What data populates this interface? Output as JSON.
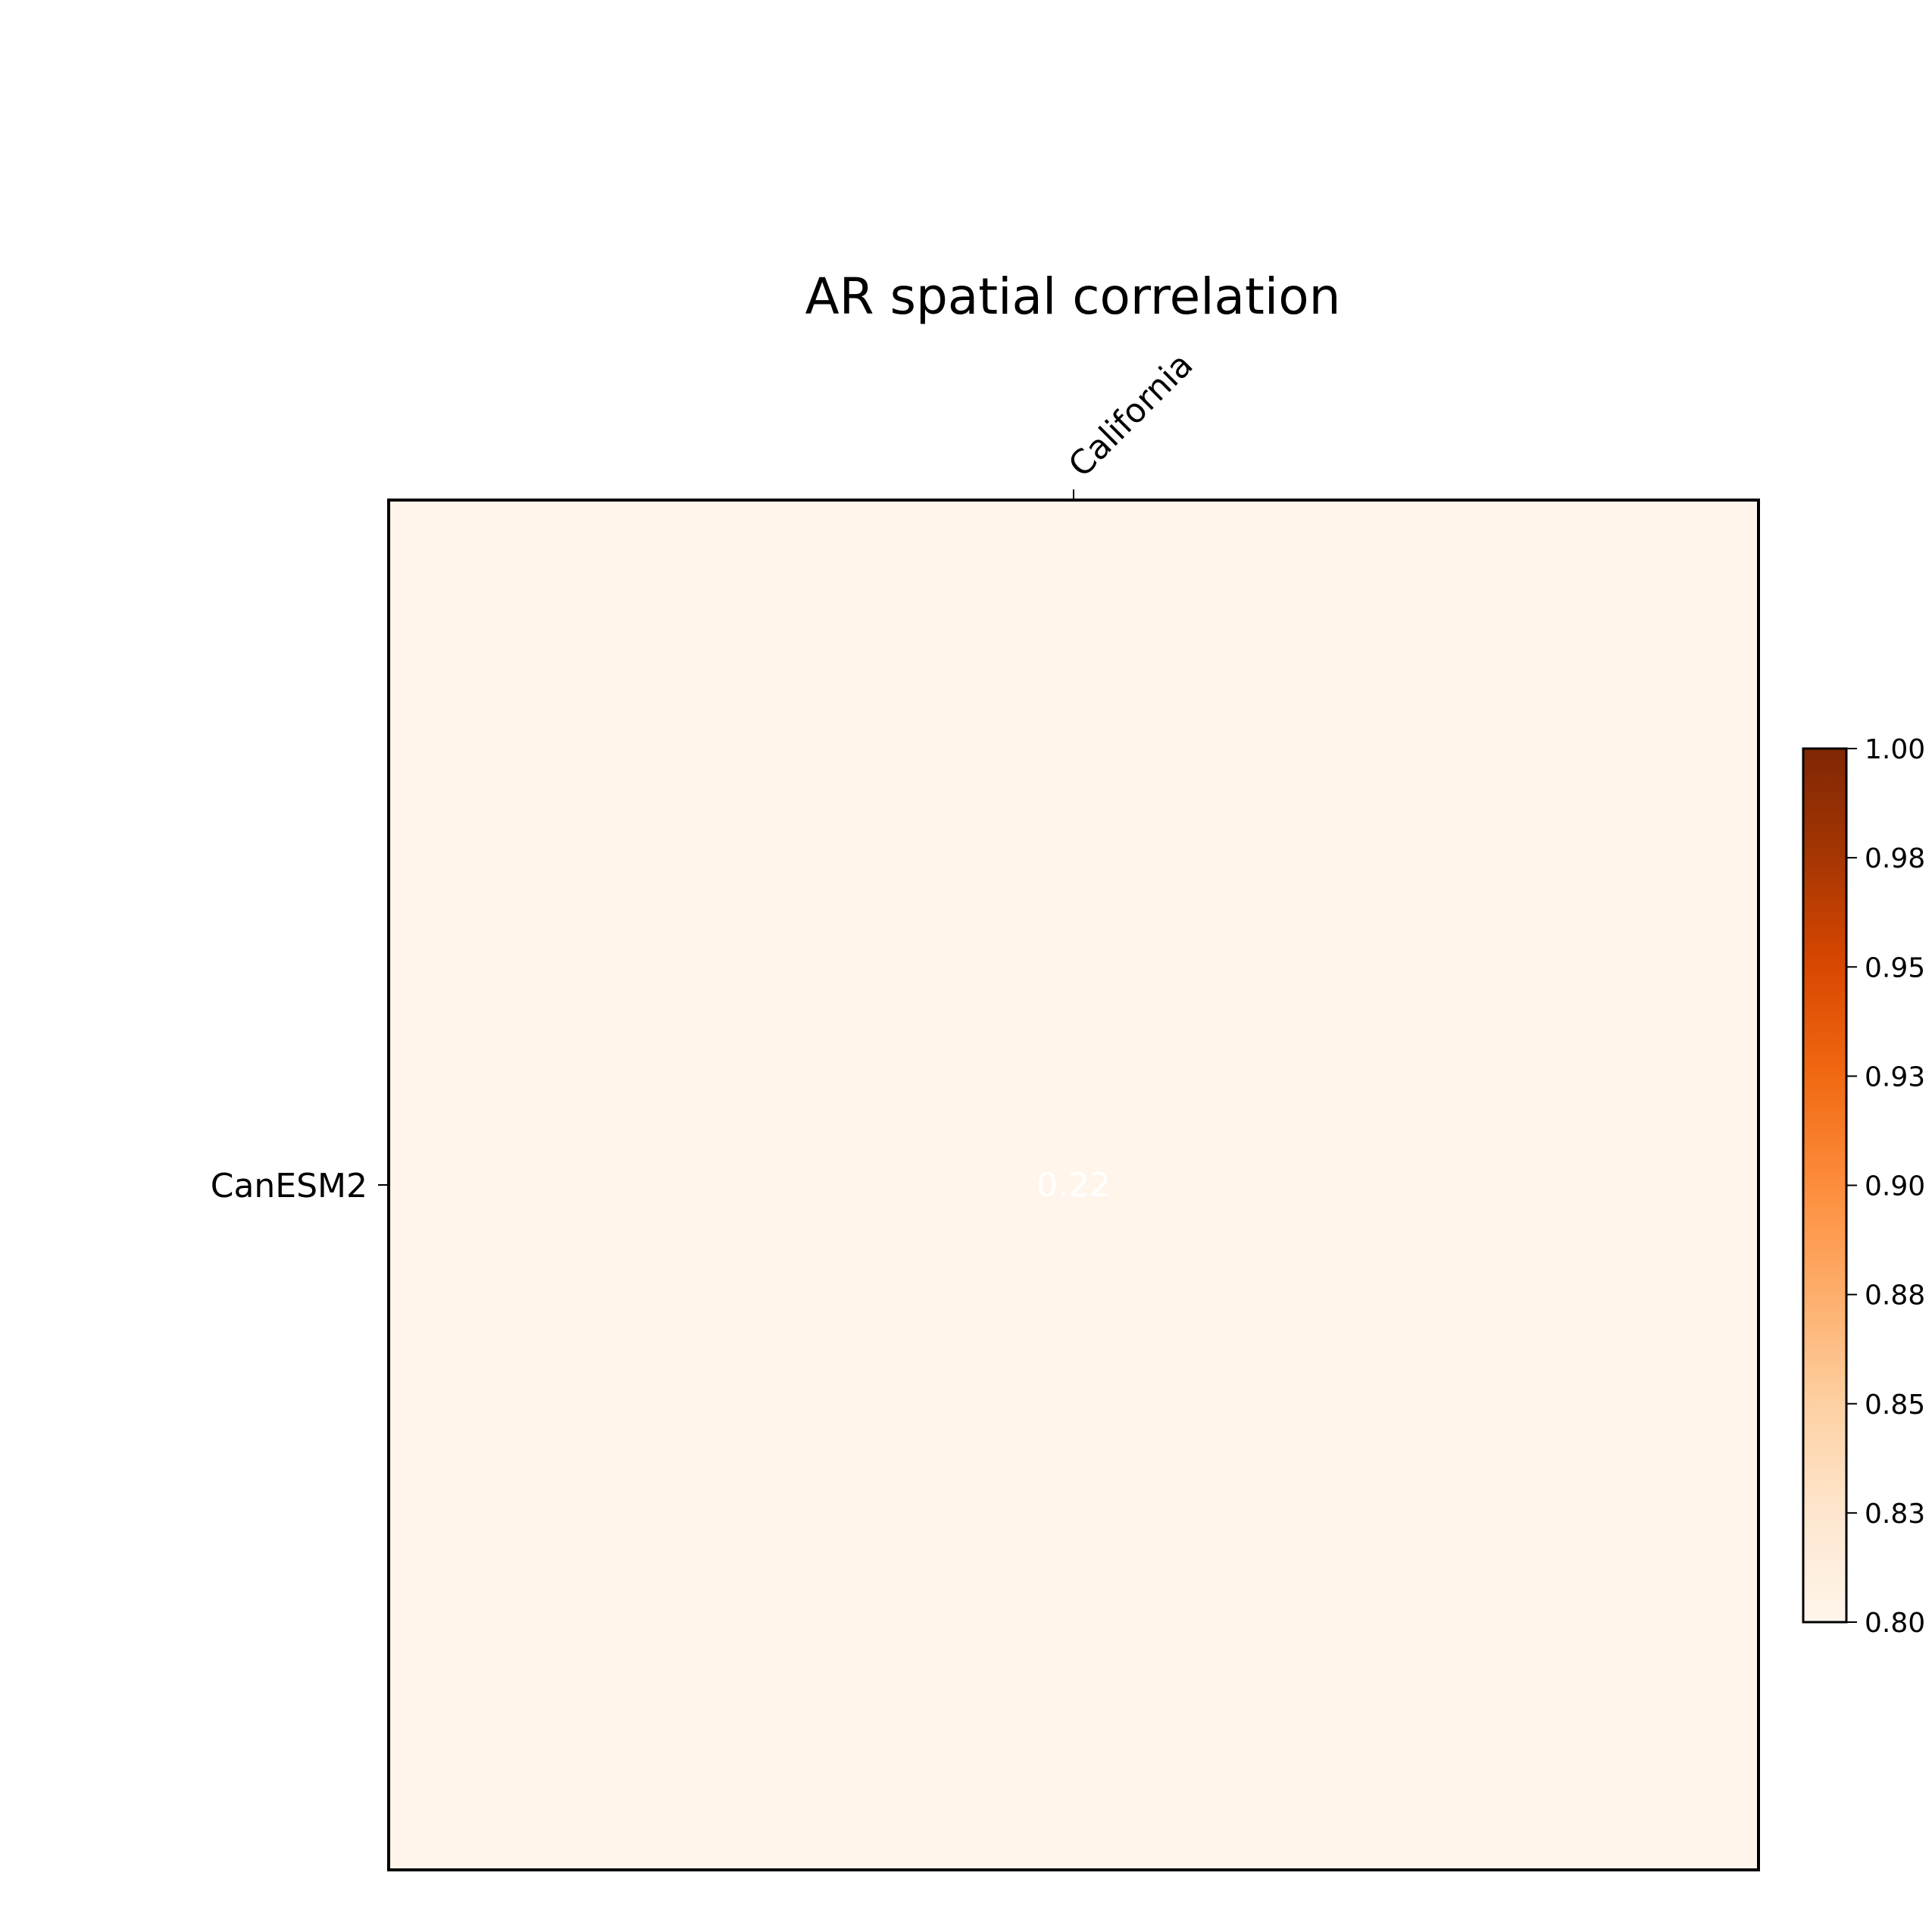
{
  "chart_data": {
    "type": "heatmap",
    "title": "AR spatial correlation",
    "xlabel": "",
    "ylabel": "",
    "x_categories": [
      "California"
    ],
    "y_categories": [
      "CanESM2"
    ],
    "values": [
      [
        0.22
      ]
    ],
    "value_labels": [
      [
        "0.22"
      ]
    ],
    "colormap": "Oranges",
    "colorbar": {
      "vmin": 0.8,
      "vmax": 1.0,
      "ticks": [
        0.8,
        0.825,
        0.85,
        0.875,
        0.9,
        0.925,
        0.95,
        0.975,
        1.0
      ],
      "tick_labels": [
        "0.80",
        "0.83",
        "0.85",
        "0.88",
        "0.90",
        "0.93",
        "0.95",
        "0.98",
        "1.00"
      ],
      "position": "right"
    },
    "colors": {
      "cell_fill": "#fff5eb",
      "cell_text": "#ffffff",
      "frame": "#000000",
      "cmap_stops": [
        "#fff5eb",
        "#fee6ce",
        "#fdd0a2",
        "#fdae6b",
        "#fd8d3c",
        "#f16913",
        "#d94801",
        "#a63603",
        "#7f2704"
      ]
    }
  }
}
